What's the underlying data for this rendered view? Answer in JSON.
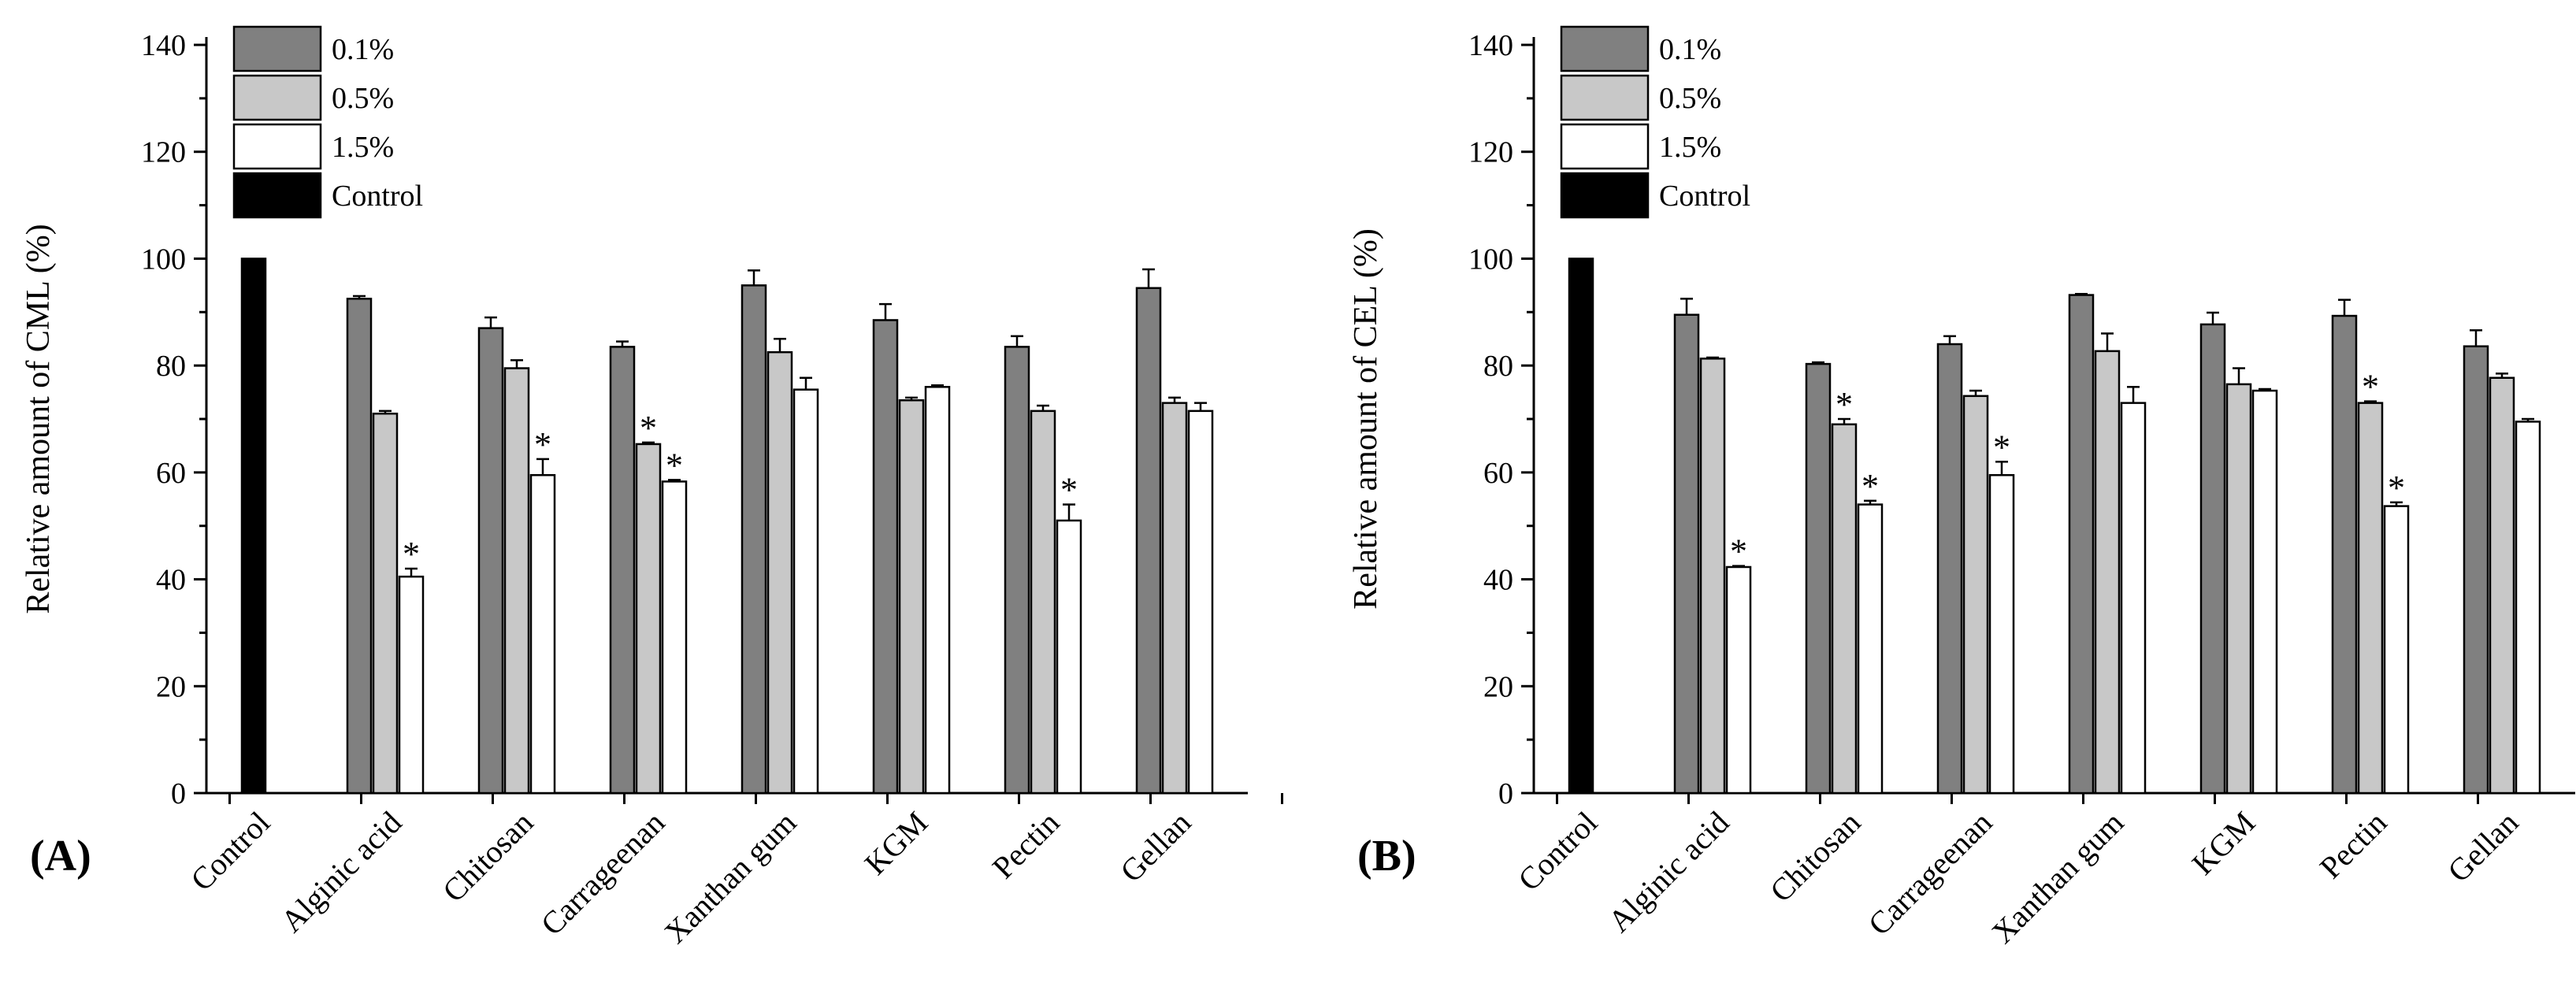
{
  "chart_data": [
    {
      "type": "bar",
      "panel_label": "(A)",
      "ylabel": "Relative amount of CML (%)",
      "xlabel": "",
      "ylim": [
        0,
        140
      ],
      "yticks": [
        "0",
        "20",
        "40",
        "60",
        "80",
        "100",
        "120",
        "140"
      ],
      "categories": [
        "Control",
        "Alginic acid",
        "Chitosan",
        "Carrageenan",
        "Xanthan gum",
        "KGM",
        "Pectin",
        "Gellan"
      ],
      "control": {
        "name": "Control",
        "value": 100,
        "error": 0
      },
      "series": [
        {
          "name": "0.1%",
          "values": [
            null,
            92.5,
            87,
            83.5,
            95,
            88.5,
            83.5,
            94.5
          ],
          "errors": [
            null,
            0.5,
            2,
            1,
            2.8,
            3,
            2,
            3.5
          ],
          "sig": [
            false,
            false,
            false,
            false,
            false,
            false,
            false,
            false
          ]
        },
        {
          "name": "0.5%",
          "values": [
            null,
            71,
            79.5,
            65.3,
            82.5,
            73.5,
            71.5,
            73
          ],
          "errors": [
            null,
            0.5,
            1.5,
            0.3,
            2.5,
            0.5,
            1,
            1
          ],
          "sig": [
            false,
            false,
            false,
            true,
            false,
            false,
            false,
            false
          ]
        },
        {
          "name": "1.5%",
          "values": [
            null,
            40.5,
            59.5,
            58.3,
            75.5,
            76,
            51,
            71.5
          ],
          "errors": [
            null,
            1.5,
            3,
            0.3,
            2.2,
            0.3,
            3,
            1.5
          ],
          "sig": [
            false,
            true,
            true,
            true,
            false,
            false,
            true,
            false
          ]
        }
      ],
      "legend": [
        "0.1%",
        "0.5%",
        "1.5%",
        "Control"
      ],
      "significance_mark": "*"
    },
    {
      "type": "bar",
      "panel_label": "(B)",
      "ylabel": "Relative amount of CEL (%)",
      "xlabel": "",
      "ylim": [
        0,
        140
      ],
      "yticks": [
        "0",
        "20",
        "40",
        "60",
        "80",
        "100",
        "120",
        "140"
      ],
      "categories": [
        "Control",
        "Alginic acid",
        "Chitosan",
        "Carrageenan",
        "Xanthan gum",
        "KGM",
        "Pectin",
        "Gellan"
      ],
      "control": {
        "name": "Control",
        "value": 100,
        "error": 0
      },
      "series": [
        {
          "name": "0.1%",
          "values": [
            null,
            89.5,
            80.3,
            84,
            93.2,
            87.7,
            89.3,
            83.6
          ],
          "errors": [
            null,
            3,
            0.3,
            1.5,
            0.2,
            2.2,
            3,
            3
          ],
          "sig": [
            false,
            false,
            false,
            false,
            false,
            false,
            false,
            false
          ]
        },
        {
          "name": "0.5%",
          "values": [
            null,
            81.3,
            69,
            74.3,
            82.7,
            76.5,
            73,
            77.7
          ],
          "errors": [
            null,
            0.2,
            1,
            1,
            3.3,
            3,
            0.3,
            0.8
          ],
          "sig": [
            false,
            false,
            true,
            false,
            false,
            false,
            true,
            false
          ]
        },
        {
          "name": "1.5%",
          "values": [
            null,
            42.3,
            54,
            59.5,
            73,
            75.3,
            53.7,
            69.5
          ],
          "errors": [
            null,
            0.2,
            0.7,
            2.5,
            3,
            0.3,
            0.7,
            0.5
          ],
          "sig": [
            false,
            true,
            true,
            true,
            false,
            false,
            true,
            false
          ]
        }
      ],
      "legend": [
        "0.1%",
        "0.5%",
        "1.5%",
        "Control"
      ],
      "significance_mark": "*"
    }
  ],
  "colors": {
    "0.1%": "#808080",
    "0.5%": "#c8c8c8",
    "1.5%": "#ffffff",
    "Control": "#000000",
    "axis": "#000000"
  }
}
